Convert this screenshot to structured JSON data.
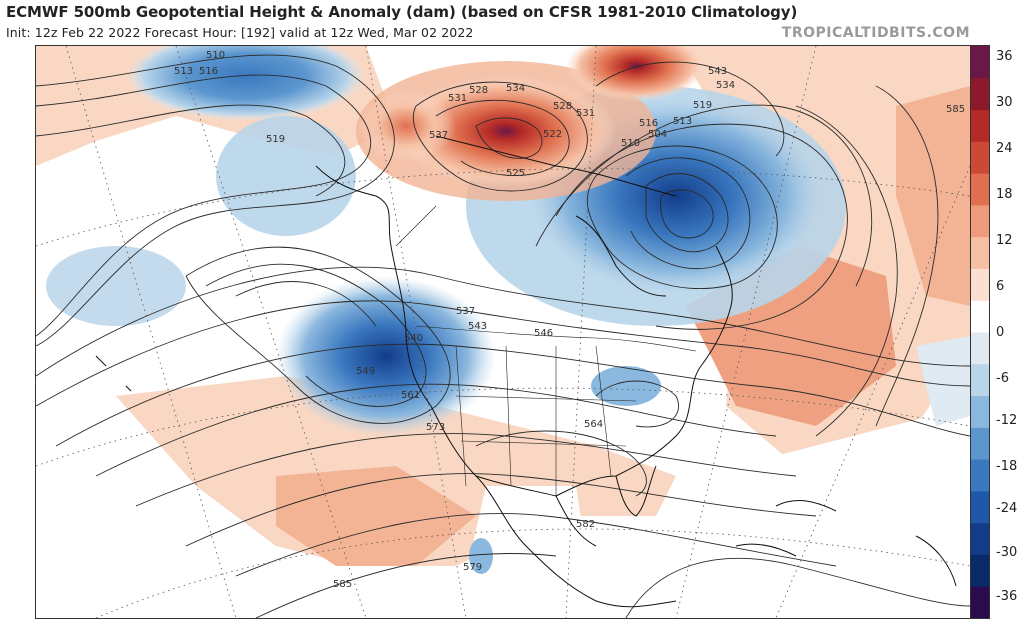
{
  "header": {
    "title": "ECMWF 500mb Geopotential Height & Anomaly (dam) (based on CFSR 1981-2010 Climatology)",
    "subtitle": "Init: 12z Feb 22 2022   Forecast Hour: [192]   valid at 12z Wed, Mar 02 2022",
    "watermark": "TROPICALTIDBITS.COM"
  },
  "colorbar": {
    "ticks": [
      "36",
      "30",
      "24",
      "18",
      "12",
      "6",
      "0",
      "-6",
      "-12",
      "-18",
      "-24",
      "-30",
      "-36"
    ],
    "colors": [
      "#2b0a4e",
      "#0a2a6a",
      "#123c8a",
      "#1f58a8",
      "#3a78bf",
      "#5b96cf",
      "#8bb8de",
      "#b8d5ea",
      "#dfeaf3",
      "#ffffff",
      "#fbe0cf",
      "#f6c0a4",
      "#ef9a7a",
      "#e0704f",
      "#cc4a35",
      "#b52a27",
      "#8c1a2c",
      "#6a1848"
    ]
  },
  "contour_labels": [
    {
      "text": "510"
    },
    {
      "text": "513"
    },
    {
      "text": "516"
    },
    {
      "text": "519"
    },
    {
      "text": "528"
    },
    {
      "text": "534"
    },
    {
      "text": "531"
    },
    {
      "text": "528"
    },
    {
      "text": "537"
    },
    {
      "text": "522"
    },
    {
      "text": "525"
    },
    {
      "text": "531"
    },
    {
      "text": "543"
    },
    {
      "text": "534"
    },
    {
      "text": "519"
    },
    {
      "text": "516"
    },
    {
      "text": "513"
    },
    {
      "text": "504"
    },
    {
      "text": "510"
    },
    {
      "text": "585"
    },
    {
      "text": "537"
    },
    {
      "text": "543"
    },
    {
      "text": "540"
    },
    {
      "text": "546"
    },
    {
      "text": "549"
    },
    {
      "text": "561"
    },
    {
      "text": "573"
    },
    {
      "text": "564"
    },
    {
      "text": "582"
    },
    {
      "text": "579"
    },
    {
      "text": "585"
    }
  ]
}
